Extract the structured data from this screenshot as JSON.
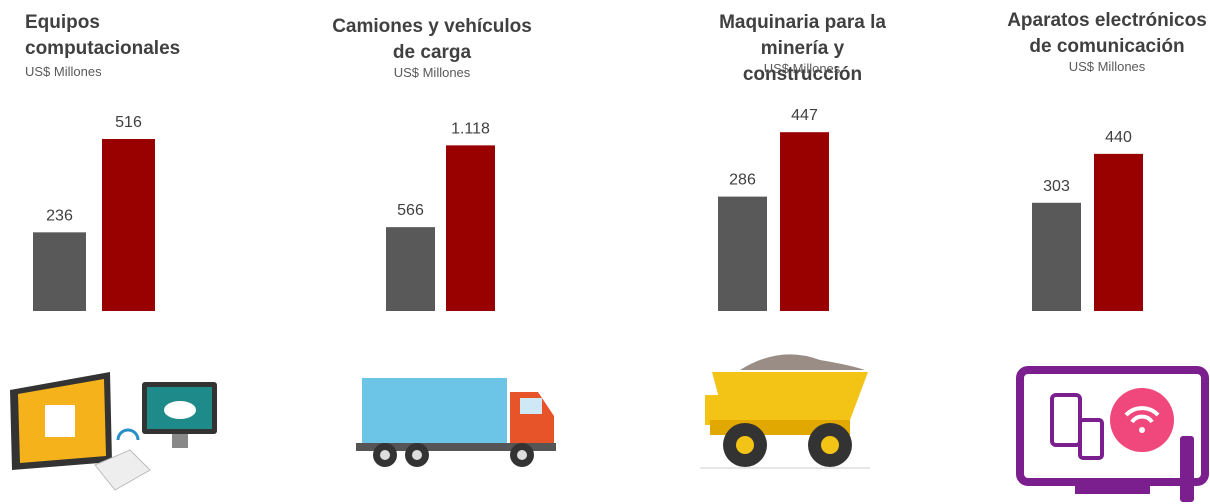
{
  "chart_data": [
    {
      "type": "bar",
      "title": "Equipos computacionales",
      "subtitle": "US$ Millones",
      "values": [
        236,
        516
      ],
      "colors": [
        "#595959",
        "#990000"
      ],
      "ylim": [
        0,
        600
      ]
    },
    {
      "type": "bar",
      "title": "Camiones y vehículos de carga",
      "subtitle": "US$ Millones",
      "values": [
        566,
        1118
      ],
      "value_labels": [
        "566",
        "1.118"
      ],
      "colors": [
        "#595959",
        "#990000"
      ],
      "ylim": [
        0,
        1350
      ]
    },
    {
      "type": "bar",
      "title": "Maquinaria para la minería y construcción",
      "subtitle": "US$ Millones",
      "values": [
        286,
        447
      ],
      "colors": [
        "#595959",
        "#990000"
      ],
      "ylim": [
        0,
        500
      ]
    },
    {
      "type": "bar",
      "title": "Aparatos electrónicos de comunicación",
      "subtitle": "US$ Millones",
      "values": [
        303,
        440
      ],
      "colors": [
        "#595959",
        "#990000"
      ],
      "ylim": [
        0,
        560
      ]
    }
  ]
}
